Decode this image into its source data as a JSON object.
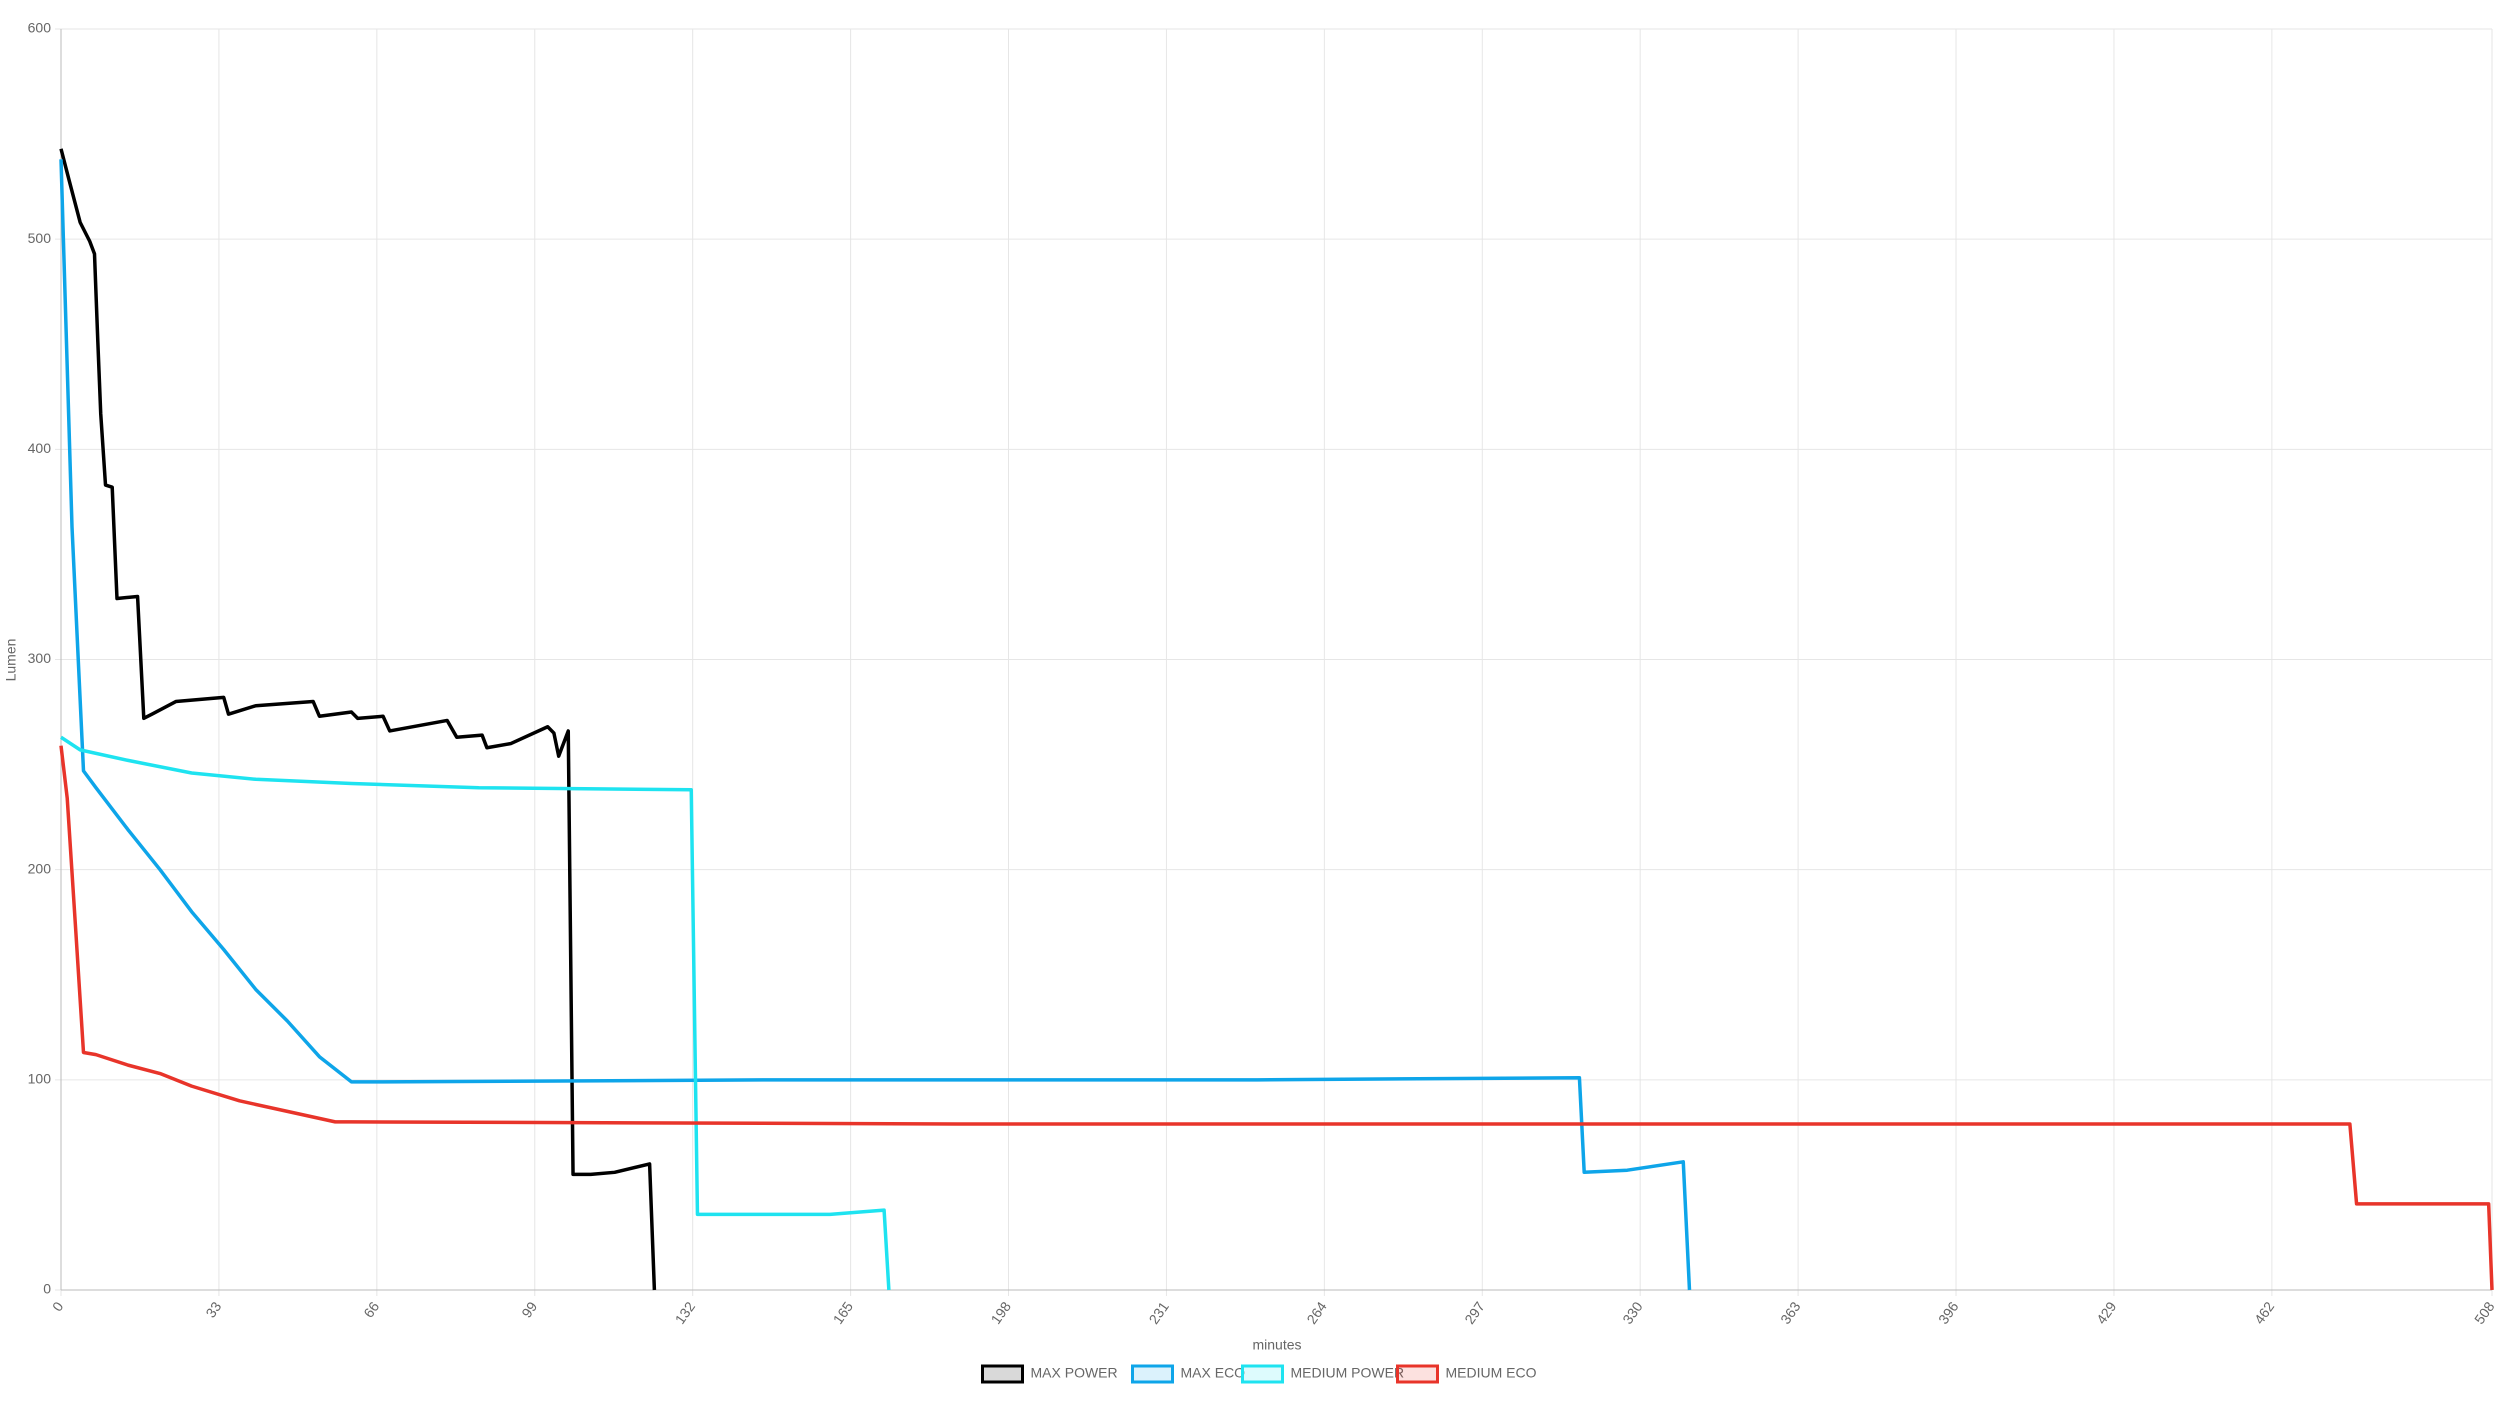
{
  "chart_data": {
    "type": "line",
    "x_label": "minutes",
    "y_label": "Lumen",
    "xlim": [
      0,
      508
    ],
    "xticks": [
      0,
      33,
      66,
      99,
      132,
      165,
      198,
      231,
      264,
      297,
      330,
      363,
      396,
      429,
      462,
      508
    ],
    "ylim": [
      0,
      600
    ],
    "yticks": [
      0,
      100,
      200,
      300,
      400,
      500,
      600
    ],
    "grid": true,
    "legend": "bottom",
    "series": [
      {
        "name": "MAX POWER",
        "color": "#000000",
        "x": [
          0,
          1.7,
          4,
          6,
          7,
          7.7,
          8.3,
          9.3,
          10.7,
          11.7,
          16,
          17.3,
          19,
          24,
          34,
          35,
          40.7,
          52.7,
          54,
          60.7,
          62,
          67.3,
          68.7,
          80.7,
          82.7,
          88,
          89,
          94,
          101.7,
          103,
          104,
          106,
          107,
          110.7,
          115.7,
          123,
          124
        ],
        "values": [
          543,
          528,
          508,
          499,
          493,
          451,
          417,
          383,
          382,
          329,
          330,
          272,
          274,
          280,
          282,
          274,
          278,
          280,
          273,
          275,
          272,
          273,
          266,
          271,
          263,
          264,
          258,
          260,
          268,
          265,
          254,
          266,
          55,
          55,
          56,
          60,
          0
        ]
      },
      {
        "name": "MAX ECO",
        "color": "#0ea5e9",
        "x": [
          0,
          2.3,
          4.7,
          7.3,
          14,
          20.7,
          27.3,
          34,
          40.7,
          47.3,
          54,
          60.7,
          67.3,
          150,
          250,
          317.3,
          318.3,
          327.3,
          339,
          340.3
        ],
        "values": [
          538,
          363,
          247,
          239,
          219,
          200,
          180,
          162,
          143,
          128,
          111,
          99,
          99,
          100,
          100,
          101,
          56,
          57,
          61,
          0
        ]
      },
      {
        "name": "MEDIUM POWER",
        "color": "#1ee3f0",
        "x": [
          0,
          4,
          14,
          27.3,
          40.7,
          60.7,
          87.3,
          131.7,
          133,
          144.3,
          160.7,
          172,
          173
        ],
        "values": [
          263,
          257,
          252,
          246,
          243,
          241,
          239,
          238,
          36,
          36,
          36,
          38,
          0
        ]
      },
      {
        "name": "MEDIUM ECO",
        "color": "#e8342a",
        "x": [
          0,
          1.3,
          3,
          4.7,
          7.3,
          14,
          20.7,
          27.3,
          37.3,
          47.3,
          57.3,
          60.7,
          187.3,
          478.3,
          479.7,
          494,
          507.3,
          508
        ],
        "values": [
          259,
          234,
          174,
          113,
          112,
          107,
          103,
          97,
          90,
          85,
          80,
          80,
          79,
          79,
          41,
          41,
          41,
          0
        ]
      }
    ]
  }
}
